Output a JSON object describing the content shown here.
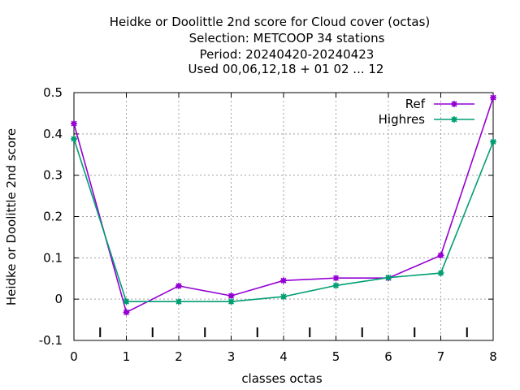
{
  "chart_data": {
    "type": "line",
    "title_lines": [
      "Heidke or Doolittle 2nd score  for Cloud cover (octas)",
      "Selection: METCOOP     34 stations",
      "Period: 20240420-20240423",
      "Used  00,06,12,18 + 01 02 ... 12"
    ],
    "xlabel": "classes octas",
    "ylabel": "Heidke or Doolittle 2nd score",
    "x": [
      0,
      1,
      2,
      3,
      4,
      5,
      6,
      7,
      8
    ],
    "x_tick_labels": [
      "0",
      "1",
      "2",
      "3",
      "4",
      "5",
      "6",
      "7",
      "8"
    ],
    "y_ticks": [
      -0.1,
      0,
      0.1,
      0.2,
      0.3,
      0.4,
      0.5
    ],
    "y_tick_labels": [
      "-0.1",
      "0",
      "0.1",
      "0.2",
      "0.3",
      "0.4",
      "0.5"
    ],
    "xlim": [
      0,
      8
    ],
    "ylim": [
      -0.1,
      0.5
    ],
    "grid": true,
    "legend_position": "top-right",
    "minor_marks_x": [
      0.5,
      1.5,
      2.5,
      3.5,
      4.5,
      5.5,
      6.5,
      7.5
    ],
    "series": [
      {
        "name": "Ref",
        "color": "#9400d3",
        "values": [
          0.425,
          -0.032,
          0.032,
          0.008,
          0.045,
          0.051,
          0.051,
          0.106,
          0.488
        ]
      },
      {
        "name": "Highres",
        "color": "#009e73",
        "values": [
          0.388,
          -0.006,
          -0.006,
          -0.006,
          0.006,
          0.033,
          0.052,
          0.063,
          0.381
        ]
      }
    ]
  }
}
